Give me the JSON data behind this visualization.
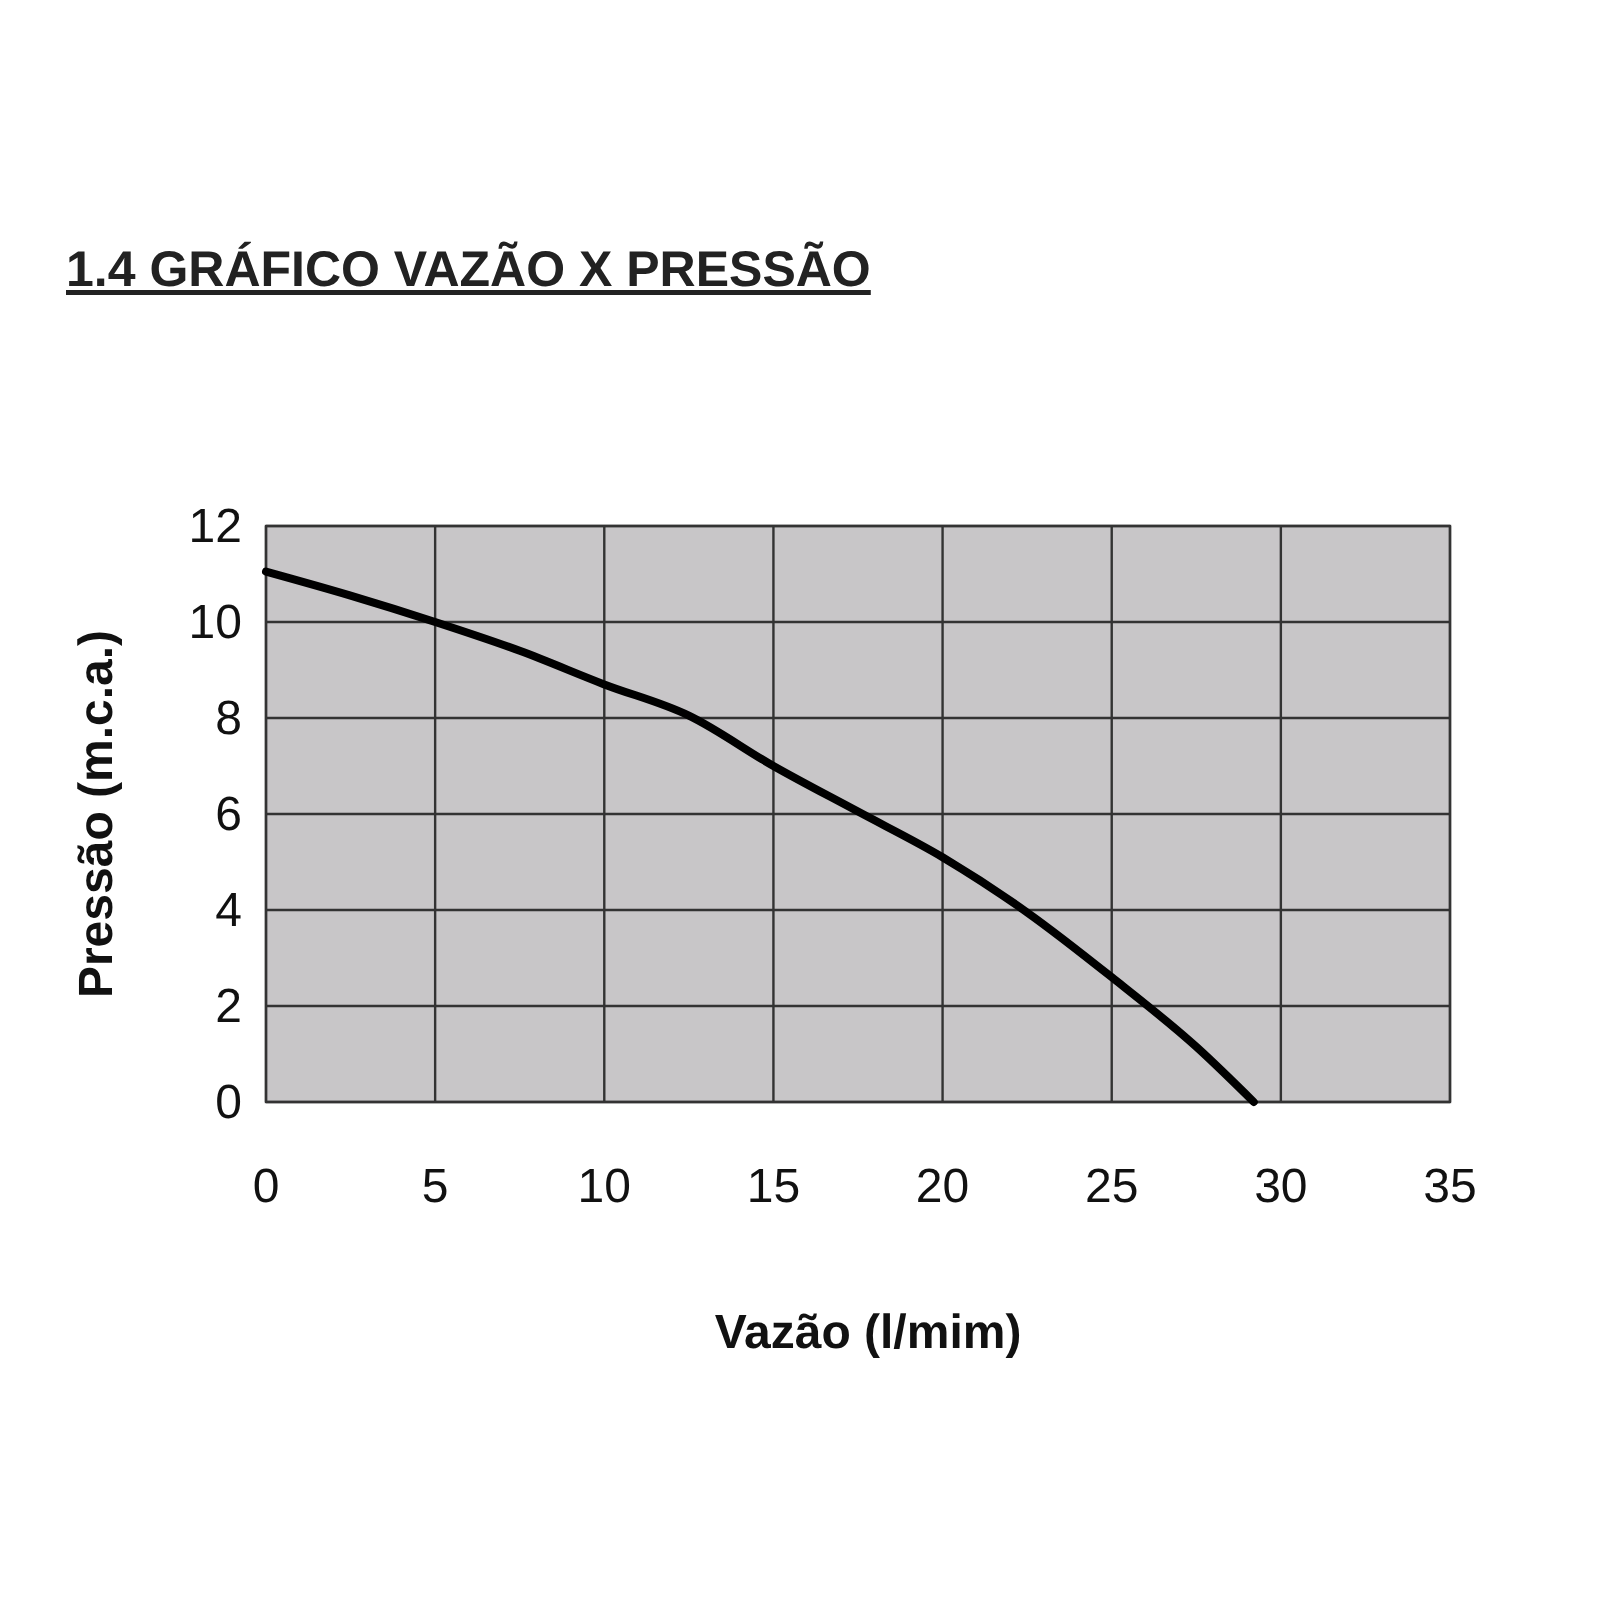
{
  "chart_data": {
    "type": "line",
    "title": "1.4 GRÁFICO VAZÃO X PRESSÃO",
    "xlabel": "Vazão (l/mim)",
    "ylabel": "Pressão (m.c.a.)",
    "x": [
      0,
      2.5,
      5,
      7.5,
      10,
      12.5,
      15,
      17.5,
      20,
      22.5,
      25,
      27.5,
      29.2
    ],
    "series": [
      {
        "color": "#000000",
        "values": [
          11.05,
          10.55,
          10.0,
          9.4,
          8.7,
          8.05,
          7.0,
          6.05,
          5.1,
          3.95,
          2.6,
          1.15,
          0
        ]
      }
    ],
    "xlim": [
      0,
      35
    ],
    "xticks": [
      0,
      5,
      10,
      15,
      20,
      25,
      30,
      35
    ],
    "ylim": [
      0,
      12
    ],
    "yticks": [
      0,
      2,
      4,
      6,
      8,
      10,
      12
    ],
    "grid": true,
    "marker": "none",
    "line_style": "solid"
  }
}
